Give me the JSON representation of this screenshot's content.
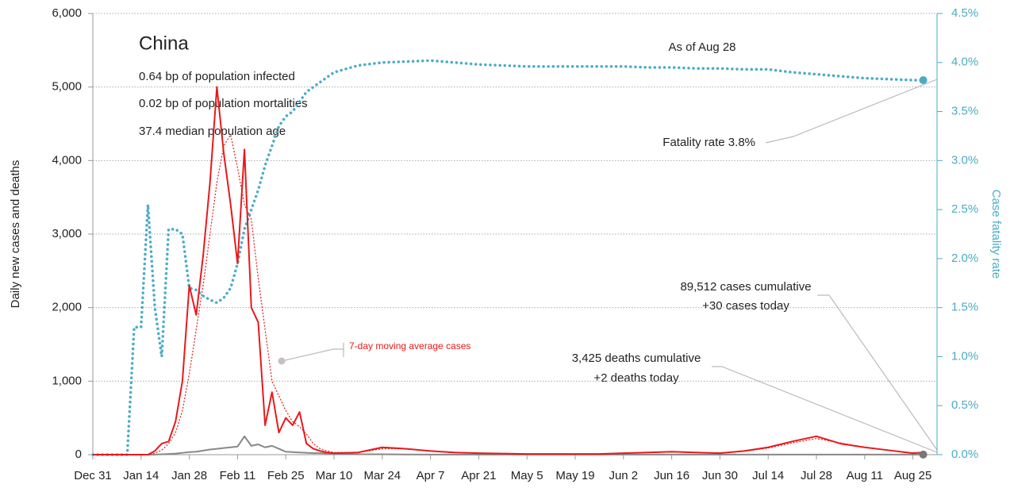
{
  "chart_data": {
    "type": "line",
    "title": "China",
    "subtitle_lines": [
      "0.64 bp of population infected",
      "0.02 bp of population mortalities",
      "37.4 median population age"
    ],
    "ylabel": "Daily new cases and deaths",
    "y2label": "Case fatality rate",
    "x": [
      0,
      2,
      4,
      6,
      8,
      10,
      12,
      14,
      16,
      18,
      20,
      22,
      24,
      26,
      28,
      30,
      32,
      34,
      36,
      38,
      40,
      42,
      44,
      46,
      48,
      50,
      52,
      54,
      56,
      58,
      60,
      62,
      64,
      66,
      68,
      70,
      77,
      84,
      91,
      98,
      105,
      112,
      119,
      126,
      133,
      140,
      147,
      154,
      161,
      168,
      175,
      182,
      189,
      196,
      203,
      210,
      217,
      224,
      231,
      238,
      241
    ],
    "xlim": [
      0,
      245
    ],
    "xticks": [
      {
        "value": 0,
        "label": "Dec 31"
      },
      {
        "value": 14,
        "label": "Jan 14"
      },
      {
        "value": 28,
        "label": "Jan 28"
      },
      {
        "value": 42,
        "label": "Feb 11"
      },
      {
        "value": 56,
        "label": "Feb 25"
      },
      {
        "value": 70,
        "label": "Mar 10"
      },
      {
        "value": 84,
        "label": "Mar 24"
      },
      {
        "value": 98,
        "label": "Apr 7"
      },
      {
        "value": 112,
        "label": "Apr 21"
      },
      {
        "value": 126,
        "label": "May 5"
      },
      {
        "value": 140,
        "label": "May 19"
      },
      {
        "value": 154,
        "label": "Jun 2"
      },
      {
        "value": 168,
        "label": "Jun 16"
      },
      {
        "value": 182,
        "label": "Jun 30"
      },
      {
        "value": 196,
        "label": "Jul 14"
      },
      {
        "value": 210,
        "label": "Jul 28"
      },
      {
        "value": 224,
        "label": "Aug 11"
      },
      {
        "value": 238,
        "label": "Aug 25"
      }
    ],
    "ylim": [
      0,
      6000
    ],
    "yticks": [
      0,
      {
        "value": 1000,
        "label": "1,000"
      },
      {
        "value": 2000,
        "label": "2,000"
      },
      {
        "value": 3000,
        "label": "3,000"
      },
      {
        "value": 4000,
        "label": "4,000"
      },
      {
        "value": 5000,
        "label": "5,000"
      },
      {
        "value": 6000,
        "label": "6,000"
      }
    ],
    "y2lim": [
      0,
      4.5
    ],
    "y2ticks": [
      {
        "value": 0,
        "label": "0.0%"
      },
      {
        "value": 0.5,
        "label": "0.5%"
      },
      {
        "value": 1,
        "label": "1.0%"
      },
      {
        "value": 1.5,
        "label": "1.5%"
      },
      {
        "value": 2,
        "label": "2.0%"
      },
      {
        "value": 2.5,
        "label": "2.5%"
      },
      {
        "value": 3,
        "label": "3.0%"
      },
      {
        "value": 3.5,
        "label": "3.5%"
      },
      {
        "value": 4,
        "label": "4.0%"
      },
      {
        "value": 4.5,
        "label": "4.5%"
      }
    ],
    "grid": true,
    "series": [
      {
        "color": "#e8191b",
        "style": "solid",
        "values": [
          0,
          0,
          0,
          0,
          0,
          0,
          0,
          0,
          0,
          50,
          150,
          180,
          450,
          1000,
          2300,
          1900,
          2700,
          3700,
          5000,
          4100,
          3400,
          2600,
          4150,
          2000,
          1800,
          400,
          850,
          300,
          500,
          400,
          580,
          150,
          80,
          50,
          30,
          20,
          30,
          100,
          80,
          50,
          30,
          20,
          15,
          10,
          10,
          10,
          10,
          20,
          30,
          40,
          30,
          20,
          50,
          100,
          180,
          250,
          150,
          100,
          60,
          20,
          30
        ]
      },
      {
        "name": "7-day moving average cases",
        "color": "#e8191b",
        "style": "dotted-thin",
        "values": [
          0,
          0,
          0,
          0,
          0,
          0,
          0,
          0,
          0,
          20,
          60,
          150,
          300,
          600,
          1100,
          1700,
          2300,
          3000,
          3700,
          4200,
          4350,
          3900,
          3400,
          3200,
          2400,
          1700,
          1000,
          800,
          600,
          450,
          380,
          280,
          150,
          80,
          50,
          30,
          30,
          80,
          80,
          50,
          30,
          20,
          15,
          10,
          10,
          10,
          10,
          20,
          30,
          35,
          30,
          25,
          45,
          90,
          160,
          220,
          160,
          100,
          60,
          25,
          25
        ]
      },
      {
        "color": "#888888",
        "style": "solid",
        "values": [
          0,
          0,
          0,
          0,
          0,
          0,
          0,
          0,
          0,
          2,
          5,
          10,
          15,
          25,
          35,
          40,
          55,
          70,
          80,
          90,
          100,
          110,
          250,
          120,
          140,
          100,
          120,
          80,
          40,
          35,
          30,
          25,
          20,
          20,
          15,
          10,
          5,
          5,
          3,
          2,
          1,
          1,
          1,
          1,
          1,
          1,
          1,
          1,
          1,
          1,
          1,
          1,
          1,
          1,
          1,
          1,
          1,
          1,
          1,
          1,
          2
        ]
      },
      {
        "color": "#4bacc6",
        "style": "dotted",
        "axis": "y2",
        "values": [
          0,
          0,
          0,
          0,
          0,
          0,
          1.3,
          1.3,
          2.55,
          1.5,
          1.0,
          2.3,
          2.3,
          2.25,
          1.7,
          1.68,
          1.62,
          1.58,
          1.55,
          1.6,
          1.7,
          1.95,
          2.3,
          2.5,
          2.7,
          2.95,
          3.15,
          3.35,
          3.45,
          3.5,
          3.6,
          3.7,
          3.75,
          3.8,
          3.85,
          3.9,
          3.97,
          4.0,
          4.01,
          4.02,
          4.0,
          3.98,
          3.97,
          3.96,
          3.96,
          3.96,
          3.96,
          3.96,
          3.95,
          3.95,
          3.94,
          3.94,
          3.93,
          3.93,
          3.9,
          3.88,
          3.86,
          3.84,
          3.83,
          3.82,
          3.82
        ]
      }
    ],
    "annotations": {
      "as_of": "As of Aug 28",
      "fatality": "Fatality rate 3.8%",
      "cases": [
        "89,512 cases cumulative",
        "+30 cases today"
      ],
      "deaths": [
        "3,425 deaths cumulative",
        "+2 deaths today"
      ]
    }
  }
}
